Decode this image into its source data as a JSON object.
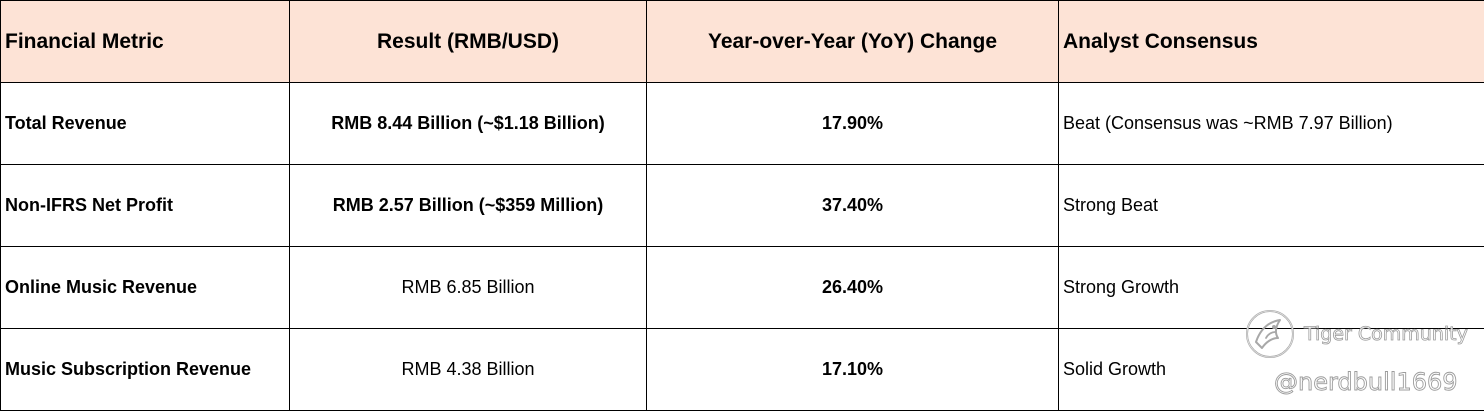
{
  "table": {
    "headers": [
      "Financial Metric",
      "Result (RMB/USD)",
      "Year-over-Year (YoY) Change",
      "Analyst Consensus"
    ],
    "rows": [
      {
        "metric": "Total Revenue",
        "result": "RMB 8.44 Billion (~$1.18 Billion)",
        "result_bold": true,
        "yoy": "17.90%",
        "consensus": "Beat (Consensus was ~RMB 7.97 Billion)"
      },
      {
        "metric": "Non-IFRS Net Profit",
        "result": "RMB 2.57 Billion (~$359 Million)",
        "result_bold": true,
        "yoy": "37.40%",
        "consensus": "Strong Beat"
      },
      {
        "metric": "Online Music Revenue",
        "result": "RMB 6.85 Billion",
        "result_bold": false,
        "yoy": "26.40%",
        "consensus": "Strong Growth"
      },
      {
        "metric": "Music Subscription Revenue",
        "result": "RMB 4.38 Billion",
        "result_bold": false,
        "yoy": "17.10%",
        "consensus": "Solid Growth"
      }
    ]
  },
  "colors": {
    "header_background": "#fde3d6",
    "border": "#000000"
  },
  "watermark": {
    "brand": "Tiger Community",
    "handle": "@nerdbull1669",
    "logo_icon": "tiger-community-logo-icon"
  }
}
